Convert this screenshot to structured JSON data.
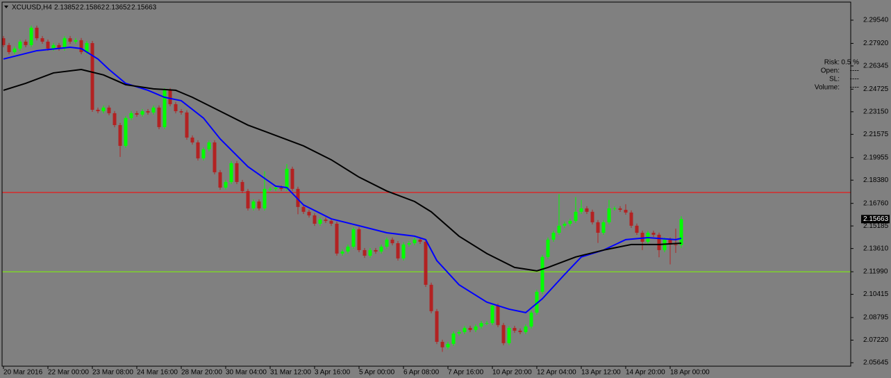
{
  "chart_data": {
    "type": "candlestick",
    "symbol": "XCUUSD,H4",
    "categories": [
      "20 Mar 2016",
      null,
      null,
      null,
      null,
      null,
      null,
      null,
      "22 Mar 00:00",
      null,
      null,
      null,
      null,
      null,
      null,
      null,
      "23 Mar 08:00",
      null,
      null,
      null,
      null,
      null,
      null,
      null,
      "24 Mar 16:00",
      null,
      null,
      null,
      null,
      null,
      null,
      null,
      "28 Mar 20:00",
      null,
      null,
      null,
      null,
      null,
      null,
      null,
      "30 Mar 04:00",
      null,
      null,
      null,
      null,
      null,
      null,
      null,
      "31 Mar 12:00",
      null,
      null,
      null,
      null,
      null,
      null,
      null,
      "3 Apr 16:00",
      null,
      null,
      null,
      null,
      null,
      null,
      null,
      "5 Apr 00:00",
      null,
      null,
      null,
      null,
      null,
      null,
      null,
      "6 Apr 08:00",
      null,
      null,
      null,
      null,
      null,
      null,
      null,
      "7 Apr 16:00",
      null,
      null,
      null,
      null,
      null,
      null,
      null,
      "10 Apr 20:00",
      null,
      null,
      null,
      null,
      null,
      null,
      null,
      "12 Apr 04:00",
      null,
      null,
      null,
      null,
      null,
      null,
      null,
      "13 Apr 12:00",
      null,
      null,
      null,
      null,
      null,
      null,
      null,
      "14 Apr 20:00",
      null,
      null,
      null,
      null,
      null,
      null,
      null,
      "18 Apr 00:00",
      null,
      null
    ],
    "open": [
      2.2828,
      2.278,
      2.2731,
      2.2756,
      2.2804,
      2.278,
      2.2901,
      2.2828,
      2.2804,
      2.2756,
      2.278,
      2.2756,
      2.2828,
      2.2804,
      2.2814,
      2.2731,
      2.2794,
      2.2329,
      2.2319,
      2.2344,
      2.2305,
      2.2222,
      2.2077,
      2.2271,
      2.2305,
      2.2295,
      2.2319,
      2.231,
      2.2344,
      2.2208,
      2.2465,
      2.2368,
      2.2319,
      2.231,
      2.2135,
      2.2101,
      2.199,
      2.2053,
      2.2101,
      2.1893,
      2.1786,
      2.1825,
      2.1956,
      2.1825,
      2.1762,
      2.1641,
      2.1689,
      2.1641,
      2.1777,
      2.1777,
      2.1786,
      2.1777,
      2.1917,
      2.1777,
      2.1651,
      2.1617,
      2.1592,
      2.1534,
      2.1563,
      2.1554,
      2.1534,
      2.1326,
      2.134,
      2.1374,
      2.1496,
      2.135,
      2.1311,
      2.135,
      2.134,
      2.1374,
      2.1423,
      2.1398,
      2.1292,
      2.1389,
      2.1398,
      2.1423,
      2.1408,
      2.1108,
      2.0924,
      2.071,
      2.0672,
      2.0696,
      2.0768,
      2.0778,
      2.0807,
      2.0793,
      2.0817,
      2.0841,
      2.0841,
      2.0962,
      2.0827,
      2.0701,
      2.0807,
      2.0788,
      2.0778,
      2.0817,
      2.0914,
      2.1059,
      2.1302,
      2.1423,
      2.1471,
      2.152,
      2.1534,
      2.1554,
      2.1617,
      2.1641,
      2.1617,
      2.1544,
      2.1471,
      2.1544,
      2.1641,
      2.1641,
      2.1631,
      2.1612,
      2.152,
      2.1471,
      2.1408,
      2.1471,
      2.1457,
      2.135,
      2.1423,
      2.1389,
      2.13852
    ],
    "high": [
      2.2843,
      2.2795,
      2.2771,
      2.2819,
      2.2819,
      2.2916,
      2.2916,
      2.2843,
      2.2819,
      2.2795,
      2.2795,
      2.2843,
      2.2843,
      2.2829,
      2.2829,
      2.2809,
      2.2809,
      2.2344,
      2.2359,
      2.2359,
      2.232,
      2.2237,
      2.2286,
      2.232,
      2.232,
      2.2334,
      2.2334,
      2.2359,
      2.2359,
      2.248,
      2.248,
      2.2383,
      2.2334,
      2.2325,
      2.215,
      2.2116,
      2.2068,
      2.2116,
      2.2116,
      2.1908,
      2.184,
      2.1971,
      2.1971,
      2.184,
      2.1777,
      2.1704,
      2.1704,
      2.19,
      2.1792,
      2.1801,
      2.1801,
      2.195,
      2.1932,
      2.1792,
      2.1666,
      2.1632,
      2.1607,
      2.1578,
      2.1578,
      2.1569,
      2.1549,
      2.1355,
      2.1389,
      2.1511,
      2.1511,
      2.1365,
      2.1365,
      2.1365,
      2.1389,
      2.1438,
      2.1438,
      2.1413,
      2.1404,
      2.1413,
      2.1438,
      2.1438,
      2.1423,
      2.1123,
      2.0939,
      2.0725,
      2.0711,
      2.0783,
      2.0793,
      2.0822,
      2.0822,
      2.0832,
      2.0856,
      2.0856,
      2.0977,
      2.0977,
      2.0842,
      2.0822,
      2.0822,
      2.0803,
      2.0832,
      2.0929,
      2.1074,
      2.1317,
      2.1438,
      2.1486,
      2.174,
      2.1549,
      2.1569,
      2.172,
      2.17,
      2.1656,
      2.1632,
      2.1559,
      2.1559,
      2.17,
      2.1656,
      2.1656,
      2.167,
      2.1627,
      2.1535,
      2.1486,
      2.1486,
      2.1486,
      2.1472,
      2.1438,
      2.1438,
      2.15,
      2.15862
    ],
    "low": [
      2.2765,
      2.2716,
      2.2716,
      2.2741,
      2.2765,
      2.2765,
      2.2813,
      2.2789,
      2.2741,
      2.2741,
      2.2741,
      2.2741,
      2.2789,
      2.2789,
      2.2716,
      2.2716,
      2.2314,
      2.2304,
      2.2304,
      2.229,
      2.2207,
      2.2,
      2.2062,
      2.2256,
      2.228,
      2.228,
      2.2295,
      2.2295,
      2.2193,
      2.2193,
      2.2353,
      2.2304,
      2.2295,
      2.212,
      2.2086,
      2.1975,
      2.1975,
      2.2038,
      2.1878,
      2.1771,
      2.1771,
      2.181,
      2.181,
      2.1747,
      2.1626,
      2.1626,
      2.1626,
      2.1626,
      2.1762,
      2.1762,
      2.1762,
      2.1762,
      2.1762,
      2.16,
      2.1602,
      2.1577,
      2.1519,
      2.1519,
      2.1539,
      2.1519,
      2.1311,
      2.1311,
      2.1325,
      2.1359,
      2.1335,
      2.1296,
      2.1296,
      2.1325,
      2.1325,
      2.1359,
      2.1383,
      2.1277,
      2.1277,
      2.1374,
      2.1383,
      2.1393,
      2.1093,
      2.0909,
      2.0695,
      2.064,
      2.0657,
      2.0681,
      2.0753,
      2.0763,
      2.0778,
      2.0778,
      2.0802,
      2.0826,
      2.0826,
      2.0812,
      2.0686,
      2.0686,
      2.0773,
      2.0763,
      2.0763,
      2.0802,
      2.0899,
      2.1044,
      2.1287,
      2.1408,
      2.1456,
      2.1505,
      2.1519,
      2.1539,
      2.1602,
      2.1602,
      2.1529,
      2.14,
      2.1456,
      2.1529,
      2.1626,
      2.1616,
      2.1597,
      2.1505,
      2.1456,
      2.135,
      2.1393,
      2.1442,
      2.13,
      2.1335,
      2.125,
      2.133,
      2.13652
    ],
    "close": [
      2.278,
      2.2731,
      2.2756,
      2.2804,
      2.278,
      2.2901,
      2.2828,
      2.2804,
      2.2756,
      2.278,
      2.2756,
      2.2828,
      2.2804,
      2.2814,
      2.2731,
      2.2794,
      2.2329,
      2.2319,
      2.2344,
      2.2305,
      2.2222,
      2.2077,
      2.2271,
      2.2305,
      2.2295,
      2.2319,
      2.231,
      2.2344,
      2.2208,
      2.2465,
      2.2368,
      2.2319,
      2.231,
      2.2135,
      2.2101,
      2.199,
      2.2053,
      2.2101,
      2.1893,
      2.1786,
      2.1825,
      2.1956,
      2.1825,
      2.1762,
      2.1641,
      2.1689,
      2.1641,
      2.1777,
      2.1777,
      2.1786,
      2.1777,
      2.1917,
      2.1777,
      2.1651,
      2.1617,
      2.1592,
      2.1534,
      2.1563,
      2.1554,
      2.1534,
      2.1326,
      2.134,
      2.1374,
      2.1496,
      2.135,
      2.1311,
      2.135,
      2.134,
      2.1374,
      2.1423,
      2.1398,
      2.1292,
      2.1389,
      2.1398,
      2.1423,
      2.1408,
      2.1108,
      2.0924,
      2.071,
      2.0672,
      2.0696,
      2.0768,
      2.0778,
      2.0807,
      2.0793,
      2.0817,
      2.0841,
      2.0841,
      2.0962,
      2.0827,
      2.0701,
      2.0807,
      2.0788,
      2.0778,
      2.0817,
      2.0914,
      2.1059,
      2.1302,
      2.1423,
      2.1471,
      2.152,
      2.1534,
      2.1554,
      2.1617,
      2.1641,
      2.1617,
      2.1544,
      2.1471,
      2.1544,
      2.1641,
      2.1641,
      2.1631,
      2.1612,
      2.152,
      2.1471,
      2.1408,
      2.1471,
      2.1457,
      2.135,
      2.1423,
      2.1389,
      2.1385,
      2.15663
    ],
    "up_color": "#00ff00",
    "down_color": "#b22222",
    "moving_averages": [
      {
        "color": "#0000ff",
        "x": [
          0,
          6,
          12,
          14,
          17,
          19,
          22,
          26,
          29,
          32,
          36,
          39,
          44,
          49,
          51,
          54,
          59,
          64,
          69,
          74,
          76,
          78,
          82,
          87,
          91,
          94,
          97,
          101,
          104,
          108,
          112,
          116,
          121,
          122
        ],
        "values": [
          2.2683,
          2.2741,
          2.2765,
          2.2756,
          2.2683,
          2.261,
          2.2513,
          2.2465,
          2.2416,
          2.2392,
          2.2271,
          2.2126,
          2.1932,
          2.1796,
          2.1786,
          2.1665,
          2.1568,
          2.152,
          2.1471,
          2.1447,
          2.1423,
          2.1277,
          2.1108,
          2.0987,
          2.0938,
          2.0914,
          2.1011,
          2.118,
          2.1302,
          2.135,
          2.1423,
          2.1437,
          2.1423,
          2.1432
        ]
      },
      {
        "color": "#000000",
        "x": [
          0,
          4,
          9,
          14,
          18,
          22,
          27,
          31,
          34,
          39,
          44,
          49,
          54,
          59,
          64,
          69,
          74,
          77,
          82,
          87,
          92,
          96,
          98,
          103,
          108,
          113,
          118,
          122
        ],
        "values": [
          2.2465,
          2.2513,
          2.2586,
          2.261,
          2.2572,
          2.2504,
          2.2475,
          2.2465,
          2.2416,
          2.2319,
          2.2222,
          2.215,
          2.2077,
          2.198,
          2.1859,
          2.1762,
          2.1689,
          2.1617,
          2.1447,
          2.1326,
          2.1229,
          2.1205,
          2.1229,
          2.1302,
          2.135,
          2.1389,
          2.1389,
          2.1398
        ]
      }
    ],
    "hlines": [
      {
        "value": 2.1752,
        "color": "#ff0000"
      },
      {
        "value": 2.1199,
        "color": "#7cfc00"
      }
    ],
    "ylim": [
      2.05402,
      2.30946
    ],
    "yticks": [
      {
        "value": 2.2954,
        "label": "2.29540"
      },
      {
        "value": 2.2792,
        "label": "2.27920"
      },
      2.26345,
      2.24725,
      {
        "value": 2.2315,
        "label": "2.23150"
      },
      2.21575,
      2.19955,
      {
        "value": 2.1838,
        "label": "2.18380"
      },
      {
        "value": 2.1676,
        "label": "2.16760"
      },
      2.15185,
      {
        "value": 2.1361,
        "label": "2.13610"
      },
      {
        "value": 2.1199,
        "label": "2.11990"
      },
      2.10415,
      2.08795,
      {
        "value": 2.0722,
        "label": "2.07220"
      },
      2.05645
    ],
    "grid": false
  },
  "info_panel": {
    "rows": [
      {
        "label": "Risk:",
        "value": "0.5 %"
      },
      {
        "label": "Open:",
        "value": "----"
      },
      {
        "label": "SL:",
        "value": "----"
      },
      {
        "label": "Volume:",
        "value": "----"
      }
    ]
  }
}
